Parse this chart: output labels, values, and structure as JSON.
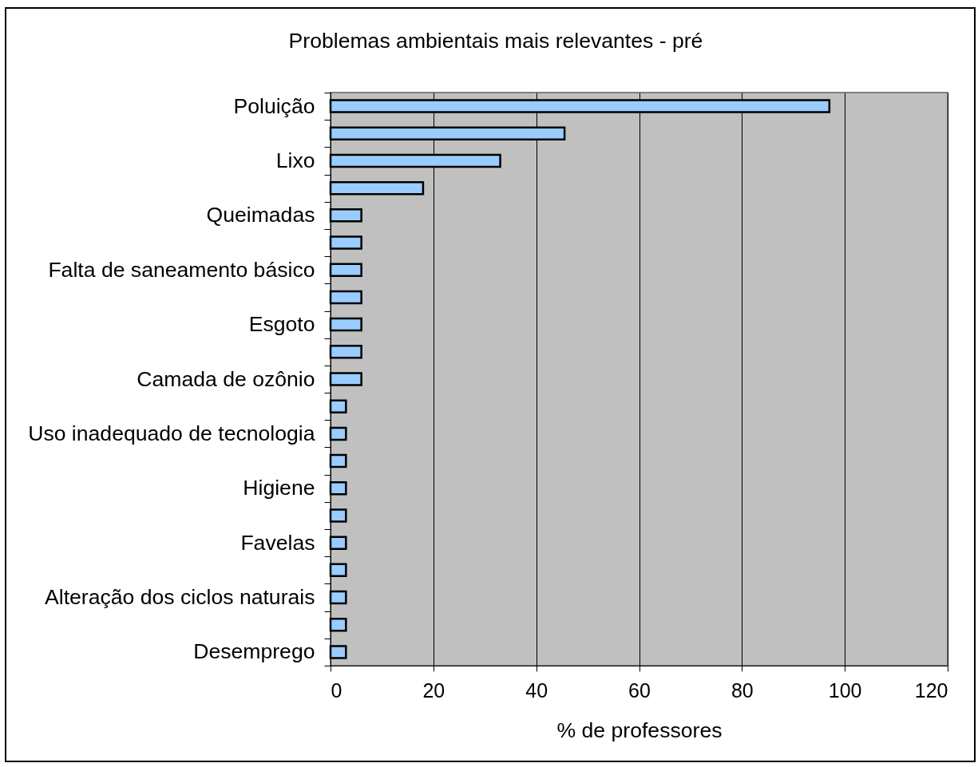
{
  "chart_data": {
    "type": "bar",
    "orientation": "horizontal",
    "title": "Problemas ambientais mais relevantes - pré",
    "xlabel": "% de professores",
    "categories": [
      "Poluição",
      null,
      "Lixo",
      null,
      "Queimadas",
      null,
      "Falta de saneamento básico",
      null,
      "Esgoto",
      null,
      "Camada de ozônio",
      null,
      "Uso inadequado de tecnologia",
      null,
      "Higiene",
      null,
      "Favelas",
      null,
      "Alteração dos ciclos naturais",
      null,
      "Desemprego"
    ],
    "values": [
      97,
      45.5,
      33,
      18,
      6,
      6,
      6,
      6,
      6,
      6,
      6,
      3,
      3,
      3,
      3,
      3,
      3,
      3,
      3,
      3,
      3
    ],
    "color": "#99ccff",
    "xlim": [
      0,
      120
    ],
    "xticks": [
      0,
      20,
      40,
      60,
      80,
      100,
      120
    ],
    "grid": "x"
  }
}
